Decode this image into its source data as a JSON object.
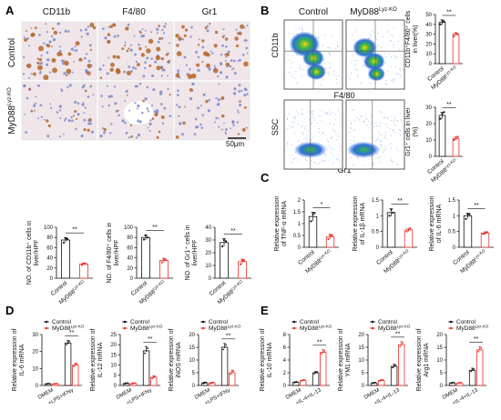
{
  "panel_letters": [
    "A",
    "B",
    "C",
    "D",
    "E"
  ],
  "colors": {
    "control": "#111111",
    "ko": "#e8302a",
    "stain": "#b5652a",
    "hematoxylin": "#6f7fc6",
    "tissue": "#f0e6ea",
    "facs_hot": "#39b54a"
  },
  "panel_a": {
    "columns": [
      "CD11b",
      "F4/80",
      "Gr1"
    ],
    "rows": [
      {
        "label": "Control",
        "superscript": ""
      },
      {
        "label": "MyD88",
        "superscript": "Lyz-KO"
      }
    ],
    "scale_bar": "50μm"
  },
  "panel_b": {
    "columns": [
      {
        "label": "Control",
        "superscript": ""
      },
      {
        "label": "MyD88",
        "superscript": "Lyz-KO"
      }
    ],
    "rows": [
      {
        "ylabel": "CD11b",
        "xlabel": "F4/80"
      },
      {
        "ylabel": "SSC",
        "xlabel": "Gr1"
      }
    ]
  },
  "chart_data": [
    {
      "id": "b-top",
      "type": "bar",
      "ylabel": "CD11b⁺F4/80⁺ cells in liver(%)",
      "categories": [
        "Control",
        "MyD88Lyz-KO"
      ],
      "values": [
        42,
        30
      ],
      "errors": [
        2.5,
        1.5
      ],
      "points": [
        [
          40,
          44,
          43
        ],
        [
          28,
          31,
          30
        ]
      ],
      "ylim": [
        0,
        50
      ],
      "ticks": [
        0,
        10,
        20,
        30,
        40,
        50
      ],
      "sig": [
        "**"
      ]
    },
    {
      "id": "b-bottom",
      "type": "bar",
      "ylabel": "Gr1⁺ cells in liver (%)",
      "categories": [
        "Control",
        "MyD88Lyz-KO"
      ],
      "values": [
        25,
        11
      ],
      "errors": [
        2,
        1
      ],
      "points": [
        [
          23,
          26,
          27
        ],
        [
          10,
          11,
          12
        ]
      ],
      "ylim": [
        0,
        30
      ],
      "ticks": [
        0,
        10,
        20,
        30
      ],
      "sig": [
        "**"
      ]
    },
    {
      "id": "a1",
      "type": "bar",
      "ylabel": "NO. of CD11b⁺ cells in liver/HPF",
      "categories": [
        "Control",
        "MyD88Lyz-KO"
      ],
      "values": [
        75,
        28
      ],
      "errors": [
        5,
        2
      ],
      "points": [
        [
          70,
          78,
          77
        ],
        [
          26,
          29,
          28
        ]
      ],
      "ylim": [
        0,
        100
      ],
      "ticks": [
        0,
        20,
        40,
        60,
        80,
        100
      ],
      "sig": [
        "**"
      ]
    },
    {
      "id": "a2",
      "type": "bar",
      "ylabel": "NO. of F4/80⁺ cells in liver/HPF",
      "categories": [
        "Control",
        "MyD88Lyz-KO"
      ],
      "values": [
        80,
        35
      ],
      "errors": [
        5,
        4
      ],
      "points": [
        [
          76,
          84,
          80
        ],
        [
          31,
          38,
          36
        ]
      ],
      "ylim": [
        0,
        100
      ],
      "ticks": [
        0,
        20,
        40,
        60,
        80,
        100
      ],
      "sig": [
        "**"
      ]
    },
    {
      "id": "a3",
      "type": "bar",
      "ylabel": "NO. of Gr1⁺ cells in liver/HPF",
      "categories": [
        "Control",
        "MyD88Lyz-KO"
      ],
      "values": [
        28,
        13
      ],
      "errors": [
        3,
        2
      ],
      "points": [
        [
          25,
          30,
          29
        ],
        [
          11,
          14,
          14
        ]
      ],
      "ylim": [
        0,
        40
      ],
      "ticks": [
        0,
        10,
        20,
        30,
        40
      ],
      "sig": [
        "**"
      ]
    },
    {
      "id": "c1",
      "type": "bar",
      "ylabel": "Relative expression of TNF-α mRNA",
      "categories": [
        "Control",
        "MyD88Lyz-KO"
      ],
      "values": [
        1.3,
        0.45
      ],
      "errors": [
        0.18,
        0.1
      ],
      "points": [
        [
          1.1,
          1.4,
          1.45
        ],
        [
          0.35,
          0.5,
          0.5
        ]
      ],
      "ylim": [
        0,
        2.0
      ],
      "ticks": [
        0,
        0.5,
        1.0,
        1.5,
        2.0
      ],
      "sig": [
        "*"
      ]
    },
    {
      "id": "c2",
      "type": "bar",
      "ylabel": "Relative expression of IL-1β mRNA",
      "categories": [
        "Control",
        "MyD88Lyz-KO"
      ],
      "values": [
        1.1,
        0.55
      ],
      "errors": [
        0.12,
        0.05
      ],
      "points": [
        [
          1.0,
          1.2,
          1.1
        ],
        [
          0.5,
          0.55,
          0.6
        ]
      ],
      "ylim": [
        0,
        1.5
      ],
      "ticks": [
        0,
        0.5,
        1.0,
        1.5
      ],
      "sig": [
        "**"
      ]
    },
    {
      "id": "c3",
      "type": "bar",
      "ylabel": "Relative expression of IL-6 mRNA",
      "categories": [
        "Control",
        "MyD88Lyz-KO"
      ],
      "values": [
        1.0,
        0.45
      ],
      "errors": [
        0.08,
        0.04
      ],
      "points": [
        [
          0.9,
          1.05,
          1.05
        ],
        [
          0.42,
          0.45,
          0.48
        ]
      ],
      "ylim": [
        0,
        1.5
      ],
      "ticks": [
        0,
        0.5,
        1.0,
        1.5
      ],
      "sig": [
        "**"
      ]
    },
    {
      "id": "d1",
      "type": "bar",
      "ylabel": "Relative expression of IL-6 mRNA",
      "categories": [
        "DMEM",
        "+LPS+IFNγ"
      ],
      "series": [
        {
          "name": "Control",
          "values": [
            1,
            25
          ],
          "errors": [
            0.2,
            1.5
          ]
        },
        {
          "name": "MyD88Lyz-KO",
          "values": [
            1,
            12
          ],
          "errors": [
            0.2,
            1.2
          ]
        }
      ],
      "ylim": [
        0,
        30
      ],
      "ticks": [
        0,
        10,
        20,
        30
      ],
      "sig": [
        "**"
      ]
    },
    {
      "id": "d2",
      "type": "bar",
      "ylabel": "Relative expression of IL-12 mRNA",
      "categories": [
        "DMEM",
        "+LPS+IFNγ"
      ],
      "series": [
        {
          "name": "Control",
          "values": [
            1,
            17
          ],
          "errors": [
            0.3,
            2
          ]
        },
        {
          "name": "MyD88Lyz-KO",
          "values": [
            1,
            4
          ],
          "errors": [
            0.3,
            0.8
          ]
        }
      ],
      "ylim": [
        0,
        25
      ],
      "ticks": [
        0,
        5,
        10,
        15,
        20,
        25
      ],
      "sig": [
        "**"
      ]
    },
    {
      "id": "d3",
      "type": "bar",
      "ylabel": "Relative expression of iNOS mRNA",
      "categories": [
        "DMEM",
        "+LPS+IFNγ"
      ],
      "series": [
        {
          "name": "Control",
          "values": [
            1,
            15
          ],
          "errors": [
            0.3,
            1.5
          ]
        },
        {
          "name": "MyD88Lyz-KO",
          "values": [
            1,
            5
          ],
          "errors": [
            0.3,
            1
          ]
        }
      ],
      "ylim": [
        0,
        20
      ],
      "ticks": [
        0,
        5,
        10,
        15,
        20
      ],
      "sig": [
        "**"
      ]
    },
    {
      "id": "e1",
      "type": "bar",
      "ylabel": "Relative expression of IL-10 mRNA",
      "categories": [
        "DMEM",
        "+IL-4+IL-13"
      ],
      "series": [
        {
          "name": "Control",
          "values": [
            0.5,
            2
          ],
          "errors": [
            0.1,
            0.2
          ]
        },
        {
          "name": "MyD88Lyz-KO",
          "values": [
            0.8,
            5.2
          ],
          "errors": [
            0.1,
            0.4
          ]
        }
      ],
      "ylim": [
        0,
        8
      ],
      "ticks": [
        0,
        2,
        4,
        6,
        8
      ],
      "sig": [
        "**"
      ]
    },
    {
      "id": "e2",
      "type": "bar",
      "ylabel": "Relative expression of YM1 mRNA",
      "categories": [
        "DMEM",
        "+IL-4+IL-13"
      ],
      "series": [
        {
          "name": "Control",
          "values": [
            1,
            7.5
          ],
          "errors": [
            0.2,
            0.8
          ]
        },
        {
          "name": "MyD88Lyz-KO",
          "values": [
            2,
            16
          ],
          "errors": [
            0.3,
            1.2
          ]
        }
      ],
      "ylim": [
        0,
        20
      ],
      "ticks": [
        0,
        5,
        10,
        15,
        20
      ],
      "sig": [
        "**"
      ]
    },
    {
      "id": "e3",
      "type": "bar",
      "ylabel": "Relative expression of Arg1 mRNA",
      "categories": [
        "DMEM",
        "+IL-4+IL-13"
      ],
      "series": [
        {
          "name": "Control",
          "values": [
            1,
            6
          ],
          "errors": [
            0.2,
            0.8
          ]
        },
        {
          "name": "MyD88Lyz-KO",
          "values": [
            1,
            14
          ],
          "errors": [
            0.2,
            1.2
          ]
        }
      ],
      "ylim": [
        0,
        20
      ],
      "ticks": [
        0,
        5,
        10,
        15,
        20
      ],
      "sig": [
        "**"
      ]
    }
  ]
}
